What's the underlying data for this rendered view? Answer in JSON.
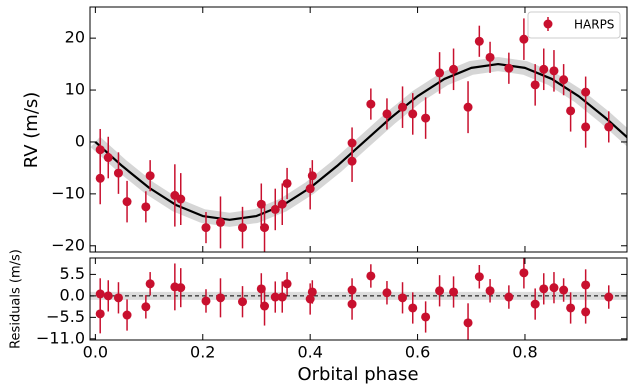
{
  "chart_data": [
    {
      "type": "scatter",
      "ylabel": "RV (m/s)",
      "legend": "upper right",
      "xlim": [
        -0.01,
        0.99
      ],
      "ylim": [
        -21.2,
        26
      ],
      "xticks": [
        {
          "value": 0,
          "label": "0.0"
        },
        0.2,
        0.4,
        0.6,
        0.8
      ],
      "yticks": [
        {
          "value": -20,
          "label": "−20"
        },
        {
          "value": -10,
          "label": "−10"
        },
        0,
        10,
        20
      ],
      "series": [
        {
          "name": "HARPS",
          "color": "#c8102e",
          "x": [
            0.009,
            0.009,
            0.024,
            0.043,
            0.059,
            0.094,
            0.102,
            0.148,
            0.159,
            0.206,
            0.233,
            0.274,
            0.309,
            0.315,
            0.335,
            0.348,
            0.357,
            0.4,
            0.404,
            0.478,
            0.478,
            0.513,
            0.543,
            0.572,
            0.591,
            0.615,
            0.641,
            0.667,
            0.694,
            0.715,
            0.735,
            0.77,
            0.798,
            0.819,
            0.835,
            0.854,
            0.872,
            0.885,
            0.913,
            0.913,
            0.956
          ],
          "values": [
            -1.5,
            -7,
            -3,
            -6,
            -11.5,
            -12.5,
            -6.5,
            -10.3,
            -11,
            -16.5,
            -15.5,
            -16.5,
            -12,
            -16.5,
            -13,
            -12,
            -8,
            -9,
            -6.5,
            -0.2,
            -3.7,
            7.3,
            5.4,
            6.7,
            5.4,
            4.6,
            13.3,
            14,
            6.7,
            19.4,
            16.3,
            14.2,
            19.8,
            11,
            14,
            13.7,
            12,
            6,
            9.6,
            2.9,
            2.9
          ],
          "errors": [
            4,
            5,
            4,
            4,
            4,
            3,
            3,
            6,
            5,
            3,
            5,
            4,
            4,
            5,
            4,
            4,
            3,
            4,
            3,
            3,
            4,
            3,
            3,
            4,
            4,
            4,
            4,
            4,
            5,
            3,
            3,
            3,
            4,
            4,
            4,
            4,
            3,
            4,
            3,
            4,
            3
          ]
        }
      ],
      "model": {
        "color": "#000000",
        "x": [
          0,
          0.05,
          0.1,
          0.15,
          0.2,
          0.25,
          0.3,
          0.35,
          0.4,
          0.45,
          0.5,
          0.55,
          0.6,
          0.65,
          0.7,
          0.75,
          0.8,
          0.85,
          0.9,
          0.95,
          1.0
        ],
        "values": [
          0,
          -4.64,
          -8.82,
          -12.14,
          -14.27,
          -15,
          -14.27,
          -12.14,
          -8.82,
          -4.64,
          0,
          4.64,
          8.82,
          12.14,
          14.27,
          15,
          14.27,
          12.14,
          8.82,
          4.64,
          0
        ]
      }
    },
    {
      "type": "scatter",
      "ylabel": "Residuals (m/s)",
      "xlabel": "Orbital phase",
      "xlim": [
        -0.01,
        0.99
      ],
      "ylim": [
        -11.3,
        9.7
      ],
      "xticks": [
        {
          "value": 0,
          "label": "0.0"
        },
        0.2,
        0.4,
        0.6,
        0.8
      ],
      "yticks": [
        5.5,
        {
          "value": 0,
          "label": "0.0"
        },
        {
          "value": -5.5,
          "label": "−5.5"
        },
        {
          "value": -11,
          "label": "−11.0"
        }
      ],
      "series": [
        {
          "color": "#c8102e",
          "x": [
            0.009,
            0.009,
            0.024,
            0.043,
            0.059,
            0.094,
            0.102,
            0.148,
            0.159,
            0.206,
            0.233,
            0.274,
            0.309,
            0.315,
            0.335,
            0.348,
            0.357,
            0.4,
            0.404,
            0.478,
            0.478,
            0.513,
            0.543,
            0.572,
            0.591,
            0.615,
            0.641,
            0.667,
            0.694,
            0.715,
            0.735,
            0.77,
            0.798,
            0.819,
            0.835,
            0.854,
            0.872,
            0.885,
            0.913,
            0.913,
            0.956
          ],
          "values": [
            0.5,
            -4.6,
            0,
            -0.5,
            -4.9,
            -2.8,
            3.1,
            2.3,
            2.1,
            -1.3,
            -0.5,
            -1.5,
            1.8,
            -2.6,
            -0.3,
            -0.3,
            3.1,
            -0.8,
            1,
            1.5,
            -2.1,
            5.1,
            0.8,
            -0.5,
            -3.1,
            -5.4,
            1.3,
            1,
            -6.9,
            4.9,
            1.3,
            -0.3,
            5.9,
            -2.1,
            1.8,
            2.1,
            1.5,
            -3.1,
            -4.1,
            2.8,
            -0.3
          ],
          "errors": [
            4,
            5,
            4,
            4,
            4,
            3,
            3,
            6,
            5,
            3,
            5,
            4,
            4,
            5,
            4,
            4,
            3,
            4,
            3,
            3,
            4,
            3,
            3,
            4,
            4,
            4,
            4,
            4,
            5,
            3,
            3,
            3,
            4,
            4,
            4,
            4,
            3,
            4,
            3,
            4,
            3
          ]
        }
      ]
    }
  ]
}
